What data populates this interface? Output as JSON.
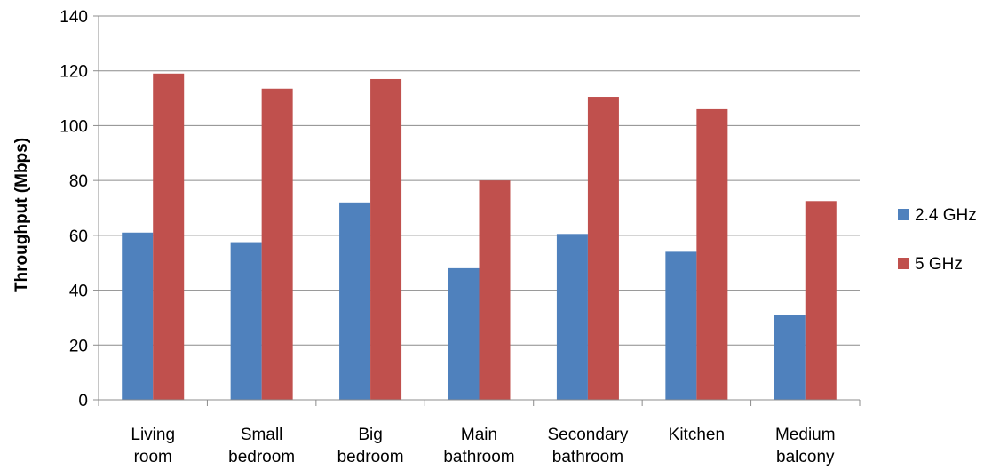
{
  "chart_data": {
    "type": "bar",
    "title": "",
    "xlabel": "",
    "ylabel": "Throughput (Mbps)",
    "ylim": [
      0,
      140
    ],
    "yticks": [
      0,
      20,
      40,
      60,
      80,
      100,
      120,
      140
    ],
    "grid": true,
    "legend_position": "right",
    "categories": [
      [
        "Living",
        "room"
      ],
      [
        "Small",
        "bedroom"
      ],
      [
        "Big",
        "bedroom"
      ],
      [
        "Main",
        "bathroom"
      ],
      [
        "Secondary",
        "bathroom"
      ],
      [
        "Kitchen"
      ],
      [
        "Medium",
        "balcony"
      ]
    ],
    "series": [
      {
        "name": "2.4 GHz",
        "color": "#4f81bd",
        "values": [
          61,
          57.5,
          72,
          48,
          60.5,
          54,
          31
        ]
      },
      {
        "name": "5 GHz",
        "color": "#c0504d",
        "values": [
          119,
          113.5,
          117,
          80,
          110.5,
          106,
          72.5
        ]
      }
    ]
  }
}
